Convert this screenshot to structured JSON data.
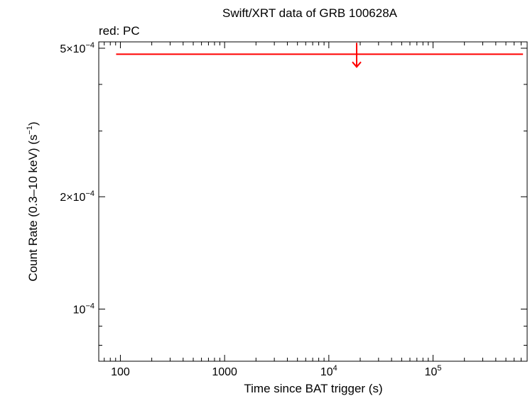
{
  "chart_data": {
    "type": "scatter",
    "title": "Swift/XRT data of GRB 100628A",
    "subtitle": "red: PC",
    "xlabel": "Time since BAT trigger (s)",
    "ylabel_main": "Count Rate (0.3–10 keV) (s",
    "ylabel_sup": "−1",
    "ylabel_end": ")",
    "x_scale": "log",
    "y_scale": "log",
    "xlim": [
      62,
      800000
    ],
    "ylim": [
      7.25e-05,
      0.00052
    ],
    "x_ticks": [
      {
        "value": 100,
        "label": "100",
        "sup": ""
      },
      {
        "value": 1000,
        "label": "1000",
        "sup": ""
      },
      {
        "value": 10000,
        "label": "10",
        "sup": "4"
      },
      {
        "value": 100000,
        "label": "10",
        "sup": "5"
      }
    ],
    "y_ticks": [
      {
        "value": 0.0005,
        "label": "5×10",
        "sup": "−4"
      },
      {
        "value": 0.0002,
        "label": "2×10",
        "sup": "−4"
      },
      {
        "value": 0.0001,
        "label": "10",
        "sup": "−4"
      }
    ],
    "grid": false,
    "series": [
      {
        "name": "PC",
        "color": "#ff0000",
        "kind": "upper_limit",
        "points": [
          {
            "x": 18500,
            "x_low": 91,
            "x_high": 730000,
            "y": 0.000482
          }
        ]
      }
    ]
  }
}
